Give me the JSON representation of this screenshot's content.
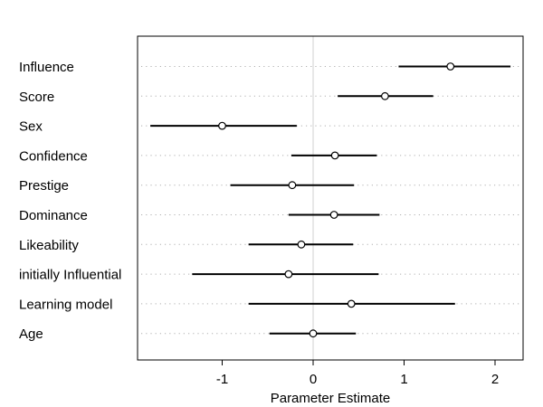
{
  "chart_data": {
    "type": "scatter",
    "subtype": "forest-plot",
    "title": "",
    "xlabel": "Parameter Estimate",
    "ylabel": "",
    "xlim": [
      -1.95,
      2.3
    ],
    "xticks": [
      -1,
      0,
      1,
      2
    ],
    "xtick_labels": [
      "-1",
      "0",
      "1",
      "2"
    ],
    "reference_line": 0,
    "grid": "dotted horizontal guides per category",
    "categories": [
      "Influence",
      "Score",
      "Sex",
      "Confidence",
      "Prestige",
      "Dominance",
      "Likeability",
      "initially Influential",
      "Learning model",
      "Age"
    ],
    "estimates": [
      1.51,
      0.79,
      -1.0,
      0.24,
      -0.23,
      0.23,
      -0.13,
      -0.27,
      0.42,
      0.0
    ],
    "lower": [
      0.94,
      0.27,
      -1.79,
      -0.24,
      -0.91,
      -0.27,
      -0.71,
      -1.33,
      -0.71,
      -0.48
    ],
    "upper": [
      2.17,
      1.32,
      -0.18,
      0.7,
      0.45,
      0.73,
      0.44,
      0.72,
      1.56,
      0.47
    ],
    "colors": {
      "interval": "#000000",
      "reference": "#d9d9d9",
      "guide": "#b0b0b0"
    }
  }
}
